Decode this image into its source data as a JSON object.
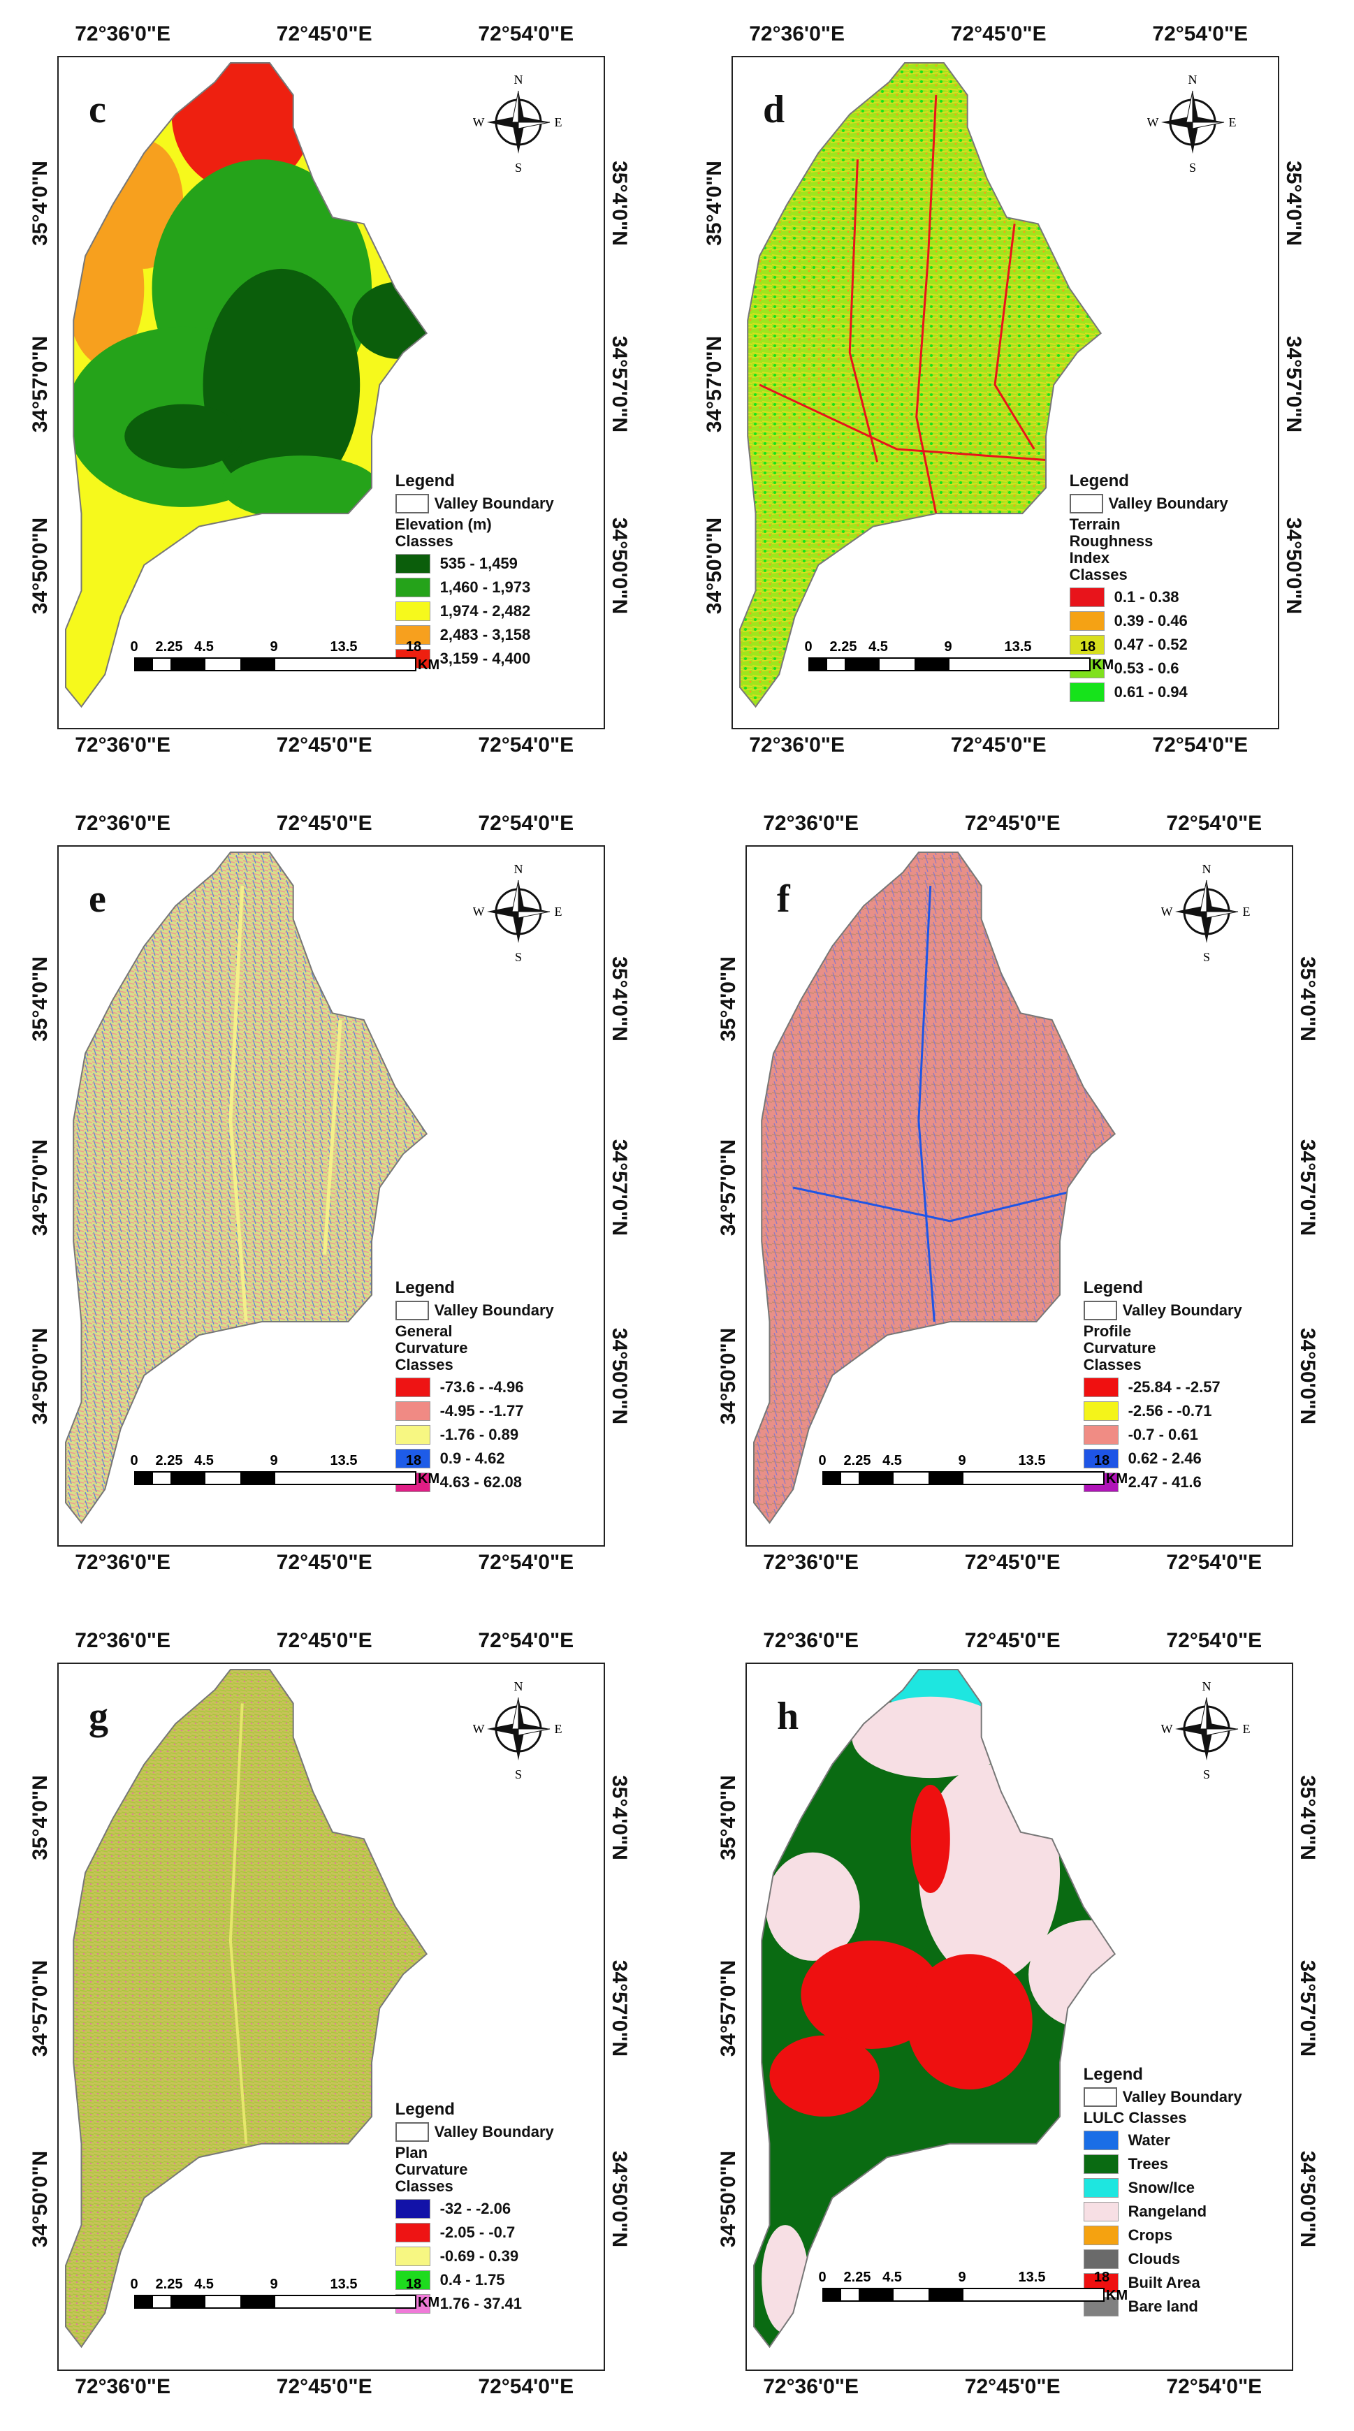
{
  "coords": {
    "lon": [
      "72°36'0\"E",
      "72°45'0\"E",
      "72°54'0\"E"
    ],
    "lat": [
      "35°4'0\"N",
      "34°57'0\"N",
      "34°50'0\"N"
    ]
  },
  "compass": {
    "n": "N",
    "s": "S",
    "e": "E",
    "w": "W"
  },
  "scale": {
    "ticks": [
      "0",
      "2.25",
      "4.5",
      "9",
      "13.5",
      "18"
    ],
    "unit": "KM"
  },
  "legend_common": {
    "title": "Legend",
    "boundary": "Valley Boundary"
  },
  "panels": {
    "c": {
      "letter": "c",
      "title": "Elevation (m)\nClasses",
      "classes": [
        {
          "label": "535 - 1,459",
          "color": "#0b5e0b"
        },
        {
          "label": "1,460 - 1,973",
          "color": "#25a31a"
        },
        {
          "label": "1,974 - 2,482",
          "color": "#f6f91c"
        },
        {
          "label": "2,483 - 3,158",
          "color": "#f7a01e"
        },
        {
          "label": "3,159 - 4,400",
          "color": "#ee2010"
        }
      ]
    },
    "d": {
      "letter": "d",
      "title": "Terrain\nRoughness\nIndex\nClasses",
      "classes": [
        {
          "label": "0.1 - 0.38",
          "color": "#e8141b"
        },
        {
          "label": "0.39 - 0.46",
          "color": "#f5a214"
        },
        {
          "label": "0.47 - 0.52",
          "color": "#d8df1e"
        },
        {
          "label": "0.53 - 0.6",
          "color": "#7fe01d"
        },
        {
          "label": "0.61 - 0.94",
          "color": "#16e31b"
        }
      ]
    },
    "e": {
      "letter": "e",
      "title": "General\nCurvature\nClasses",
      "classes": [
        {
          "label": "-73.6 - -4.96",
          "color": "#ee1414"
        },
        {
          "label": "-4.95 - -1.77",
          "color": "#f08a84"
        },
        {
          "label": "-1.76 - 0.89",
          "color": "#f7f782"
        },
        {
          "label": "0.9 - 4.62",
          "color": "#1e5ce8"
        },
        {
          "label": "4.63 - 62.08",
          "color": "#e01e86"
        }
      ]
    },
    "f": {
      "letter": "f",
      "title": "Profile\nCurvature\nClasses",
      "classes": [
        {
          "label": "-25.84 - -2.57",
          "color": "#f01010"
        },
        {
          "label": "-2.56 - -0.71",
          "color": "#f4f41a"
        },
        {
          "label": "-0.7 - 0.61",
          "color": "#f08c84"
        },
        {
          "label": "0.62 - 2.46",
          "color": "#1e55e6"
        },
        {
          "label": "2.47 - 41.6",
          "color": "#b014b8"
        }
      ]
    },
    "g": {
      "letter": "g",
      "title": "Plan\nCurvature\nClasses",
      "classes": [
        {
          "label": "-32 - -2.06",
          "color": "#1212a8"
        },
        {
          "label": "-2.05 - -0.7",
          "color": "#ee1414"
        },
        {
          "label": "-0.69 - 0.39",
          "color": "#f7f782"
        },
        {
          "label": "0.4 - 1.75",
          "color": "#1edb1e"
        },
        {
          "label": "1.76 - 37.41",
          "color": "#f07ad8"
        }
      ]
    },
    "h": {
      "letter": "h",
      "title": "LULC Classes",
      "classes": [
        {
          "label": "Water",
          "color": "#1a6ee6"
        },
        {
          "label": "Trees",
          "color": "#0a6b12"
        },
        {
          "label": "Snow/Ice",
          "color": "#1ee6e0"
        },
        {
          "label": "Rangeland",
          "color": "#f7dfe4"
        },
        {
          "label": "Crops",
          "color": "#f5a210"
        },
        {
          "label": "Clouds",
          "color": "#6a6a6a"
        },
        {
          "label": "Built Area",
          "color": "#ee1010"
        },
        {
          "label": "Bare land",
          "color": "#808080"
        }
      ]
    }
  }
}
